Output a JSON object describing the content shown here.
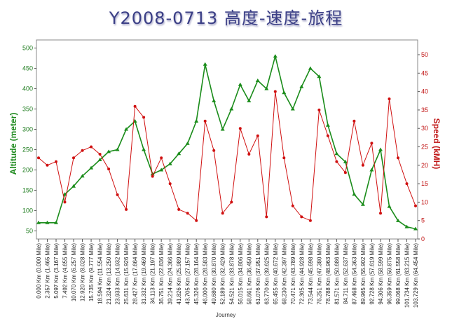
{
  "chart_data": {
    "type": "line",
    "title": "Y2008-0713 高度-速度-旅程",
    "xlabel": "Journey",
    "x_tick_labels": [
      "0.000 Km (0.000 Mile)",
      "2.357 Km (1.465 Mile)",
      "5.097 Km (3.167 Mile)",
      "7.492 Km (4.655 Mile)",
      "10.070 Km (6.257 Mile)",
      "12.920 Km (8.028 Mile)",
      "15.735 Km (9.777 Mile)",
      "18.594 Km (11.554 Mile)",
      "21.324 Km (13.250 Mile)",
      "23.933 Km (14.932 Mile)",
      "25.631 Km (15.926 Mile)",
      "28.427 Km (17.664 Mile)",
      "31.332 Km (19.469 Mile)",
      "34.113 Km (21.197 Mile)",
      "36.751 Km (22.836 Mile)",
      "39.214 Km (24.366 Mile)",
      "41.826 Km (25.989 Mile)",
      "43.705 Km (27.157 Mile)",
      "45.326 Km (28.164 Mile)",
      "46.000 Km (28.583 Mile)",
      "49.680 Km (30.870 Mile)",
      "52.189 Km (32.429 Mile)",
      "54.521 Km (33.878 Mile)",
      "56.015 Km (34.806 Mile)",
      "58.661 Km (36.450 Mile)",
      "61.076 Km (37.951 Mile)",
      "63.770 Km (39.625 Mile)",
      "65.455 Km (40.672 Mile)",
      "68.230 Km (42.397 Mile)",
      "70.471 Km (43.789 Mile)",
      "72.305 Km (44.928 Mile)",
      "73.544 Km (45.698 Mile)",
      "76.251 Km (47.380 Mile)",
      "78.788 Km (48.963 Mile)",
      "81.571 Km (50.686 Mile)",
      "84.711 Km (52.637 Mile)",
      "87.468 Km (54.363 Mile)",
      "89.965 Km (55.902 Mile)",
      "92.728 Km (57.619 Mile)",
      "94.306 Km (58.599 Mile)",
      "96.359 Km (59.875 Mile)",
      "99.068 Km (61.558 Mile)",
      "101.734 Km (63.215 Mile)",
      "103.729 Km (64.454 Mile)"
    ],
    "y_left": {
      "label": "Altitude (meter)",
      "ylim": [
        30,
        520
      ],
      "ticks": [
        50,
        100,
        150,
        200,
        250,
        300,
        350,
        400,
        450,
        500
      ],
      "color": "#1e8a1e"
    },
    "y_right": {
      "label": "Speed (kMH)",
      "ylim": [
        0,
        54
      ],
      "ticks": [
        0,
        5,
        10,
        15,
        20,
        25,
        30,
        35,
        40,
        45,
        50
      ],
      "color": "#d01010"
    },
    "series": [
      {
        "axis": "left",
        "color": "#1a8c1a",
        "x": [
          0,
          1,
          2,
          3,
          4,
          5,
          6,
          7,
          8,
          9,
          10,
          11,
          12,
          13,
          14,
          15,
          16,
          17,
          18,
          19,
          20,
          21,
          22,
          23,
          24,
          25,
          26,
          27,
          28,
          29,
          30,
          31,
          32,
          33,
          34,
          35,
          36,
          37,
          38,
          39,
          40,
          41,
          42,
          43
        ],
        "values": [
          70,
          70,
          70,
          140,
          160,
          185,
          205,
          225,
          245,
          250,
          300,
          320,
          250,
          190,
          200,
          215,
          240,
          265,
          320,
          460,
          370,
          300,
          350,
          410,
          370,
          420,
          400,
          480,
          390,
          350,
          405,
          450,
          430,
          310,
          240,
          220,
          140,
          115,
          200,
          250,
          110,
          75,
          60,
          55
        ]
      },
      {
        "axis": "right",
        "color": "#d01010",
        "x": [
          0,
          1,
          2,
          3,
          4,
          5,
          6,
          7,
          8,
          9,
          10,
          11,
          12,
          13,
          14,
          15,
          16,
          17,
          18,
          19,
          20,
          21,
          22,
          23,
          24,
          25,
          26,
          27,
          28,
          29,
          30,
          31,
          32,
          33,
          34,
          35,
          36,
          37,
          38,
          39,
          40,
          41,
          42,
          43
        ],
        "values": [
          22,
          20,
          21,
          10,
          22,
          24,
          25,
          23,
          19,
          12,
          8,
          36,
          33,
          17,
          22,
          15,
          8,
          7,
          5,
          32,
          24,
          7,
          10,
          30,
          23,
          28,
          6,
          40,
          22,
          9,
          6,
          5,
          35,
          28,
          21,
          18,
          32,
          20,
          26,
          7,
          38,
          22,
          15,
          9
        ]
      }
    ]
  }
}
